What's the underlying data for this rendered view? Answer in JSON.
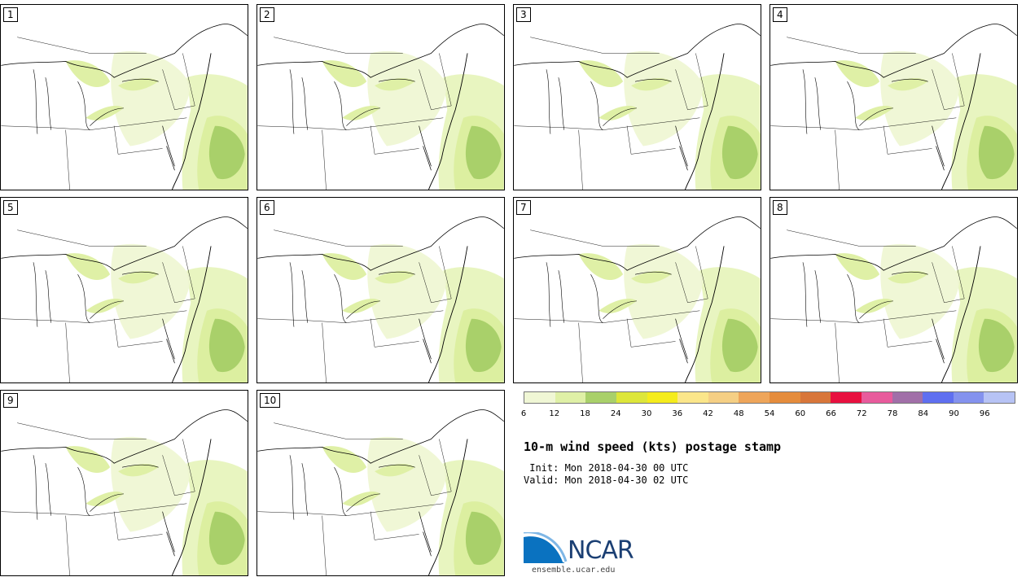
{
  "title": "10-m wind speed (kts) postage stamp",
  "init": " Init: Mon 2018-04-30 00 UTC",
  "valid": "Valid: Mon 2018-04-30 02 UTC",
  "panels": [
    {
      "label": "1"
    },
    {
      "label": "2"
    },
    {
      "label": "3"
    },
    {
      "label": "4"
    },
    {
      "label": "5"
    },
    {
      "label": "6"
    },
    {
      "label": "7"
    },
    {
      "label": "8"
    },
    {
      "label": "9"
    },
    {
      "label": "10"
    }
  ],
  "colorbar": {
    "colors": [
      "#f0f7d5",
      "#dff0a6",
      "#a9d06a",
      "#dde63a",
      "#f5ec1c",
      "#fbe68a",
      "#f5cf84",
      "#eea55a",
      "#e58c3c",
      "#d8763a",
      "#e8103f",
      "#e85b9c",
      "#a16fa8",
      "#5f6ff0",
      "#8492ee",
      "#b7c3f5"
    ],
    "tick_labels": [
      "6",
      "12",
      "18",
      "24",
      "30",
      "36",
      "42",
      "48",
      "54",
      "60",
      "66",
      "72",
      "78",
      "84",
      "90",
      "96"
    ]
  },
  "logo_text": "NCAR",
  "url": "ensemble.ucar.edu"
}
